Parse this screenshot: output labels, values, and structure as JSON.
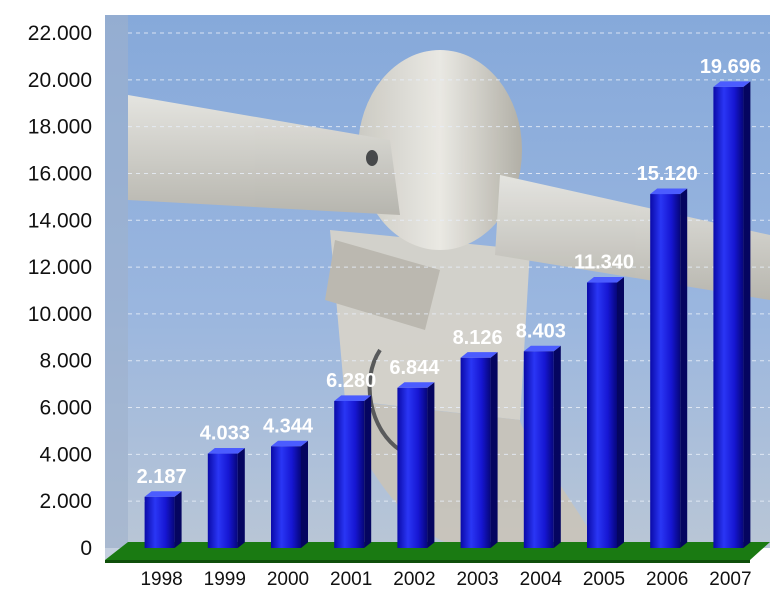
{
  "chart_data": {
    "type": "bar",
    "title": "",
    "xlabel": "",
    "ylabel": "",
    "categories": [
      "1998",
      "1999",
      "2000",
      "2001",
      "2002",
      "2003",
      "2004",
      "2005",
      "2006",
      "2007"
    ],
    "values": [
      2187,
      4033,
      4344,
      6280,
      6844,
      8126,
      8403,
      11340,
      15120,
      19696
    ],
    "value_labels": [
      "2.187",
      "4.033",
      "4.344",
      "6.280",
      "6.844",
      "8.126",
      "8.403",
      "11.340",
      "15.120",
      "19.696"
    ],
    "ylim": [
      0,
      22000
    ],
    "yticks": [
      0,
      2000,
      4000,
      6000,
      8000,
      10000,
      12000,
      14000,
      16000,
      18000,
      20000,
      22000
    ],
    "ytick_labels": [
      "0",
      "2.000",
      "4.000",
      "6.000",
      "8.000",
      "10.000",
      "12.000",
      "14.000",
      "16.000",
      "18.000",
      "20.000",
      "22.000"
    ],
    "grid": true,
    "bar_color": "#1515d8",
    "floor_color": "#1a7a12",
    "background_image": "wind-turbine-photo"
  }
}
